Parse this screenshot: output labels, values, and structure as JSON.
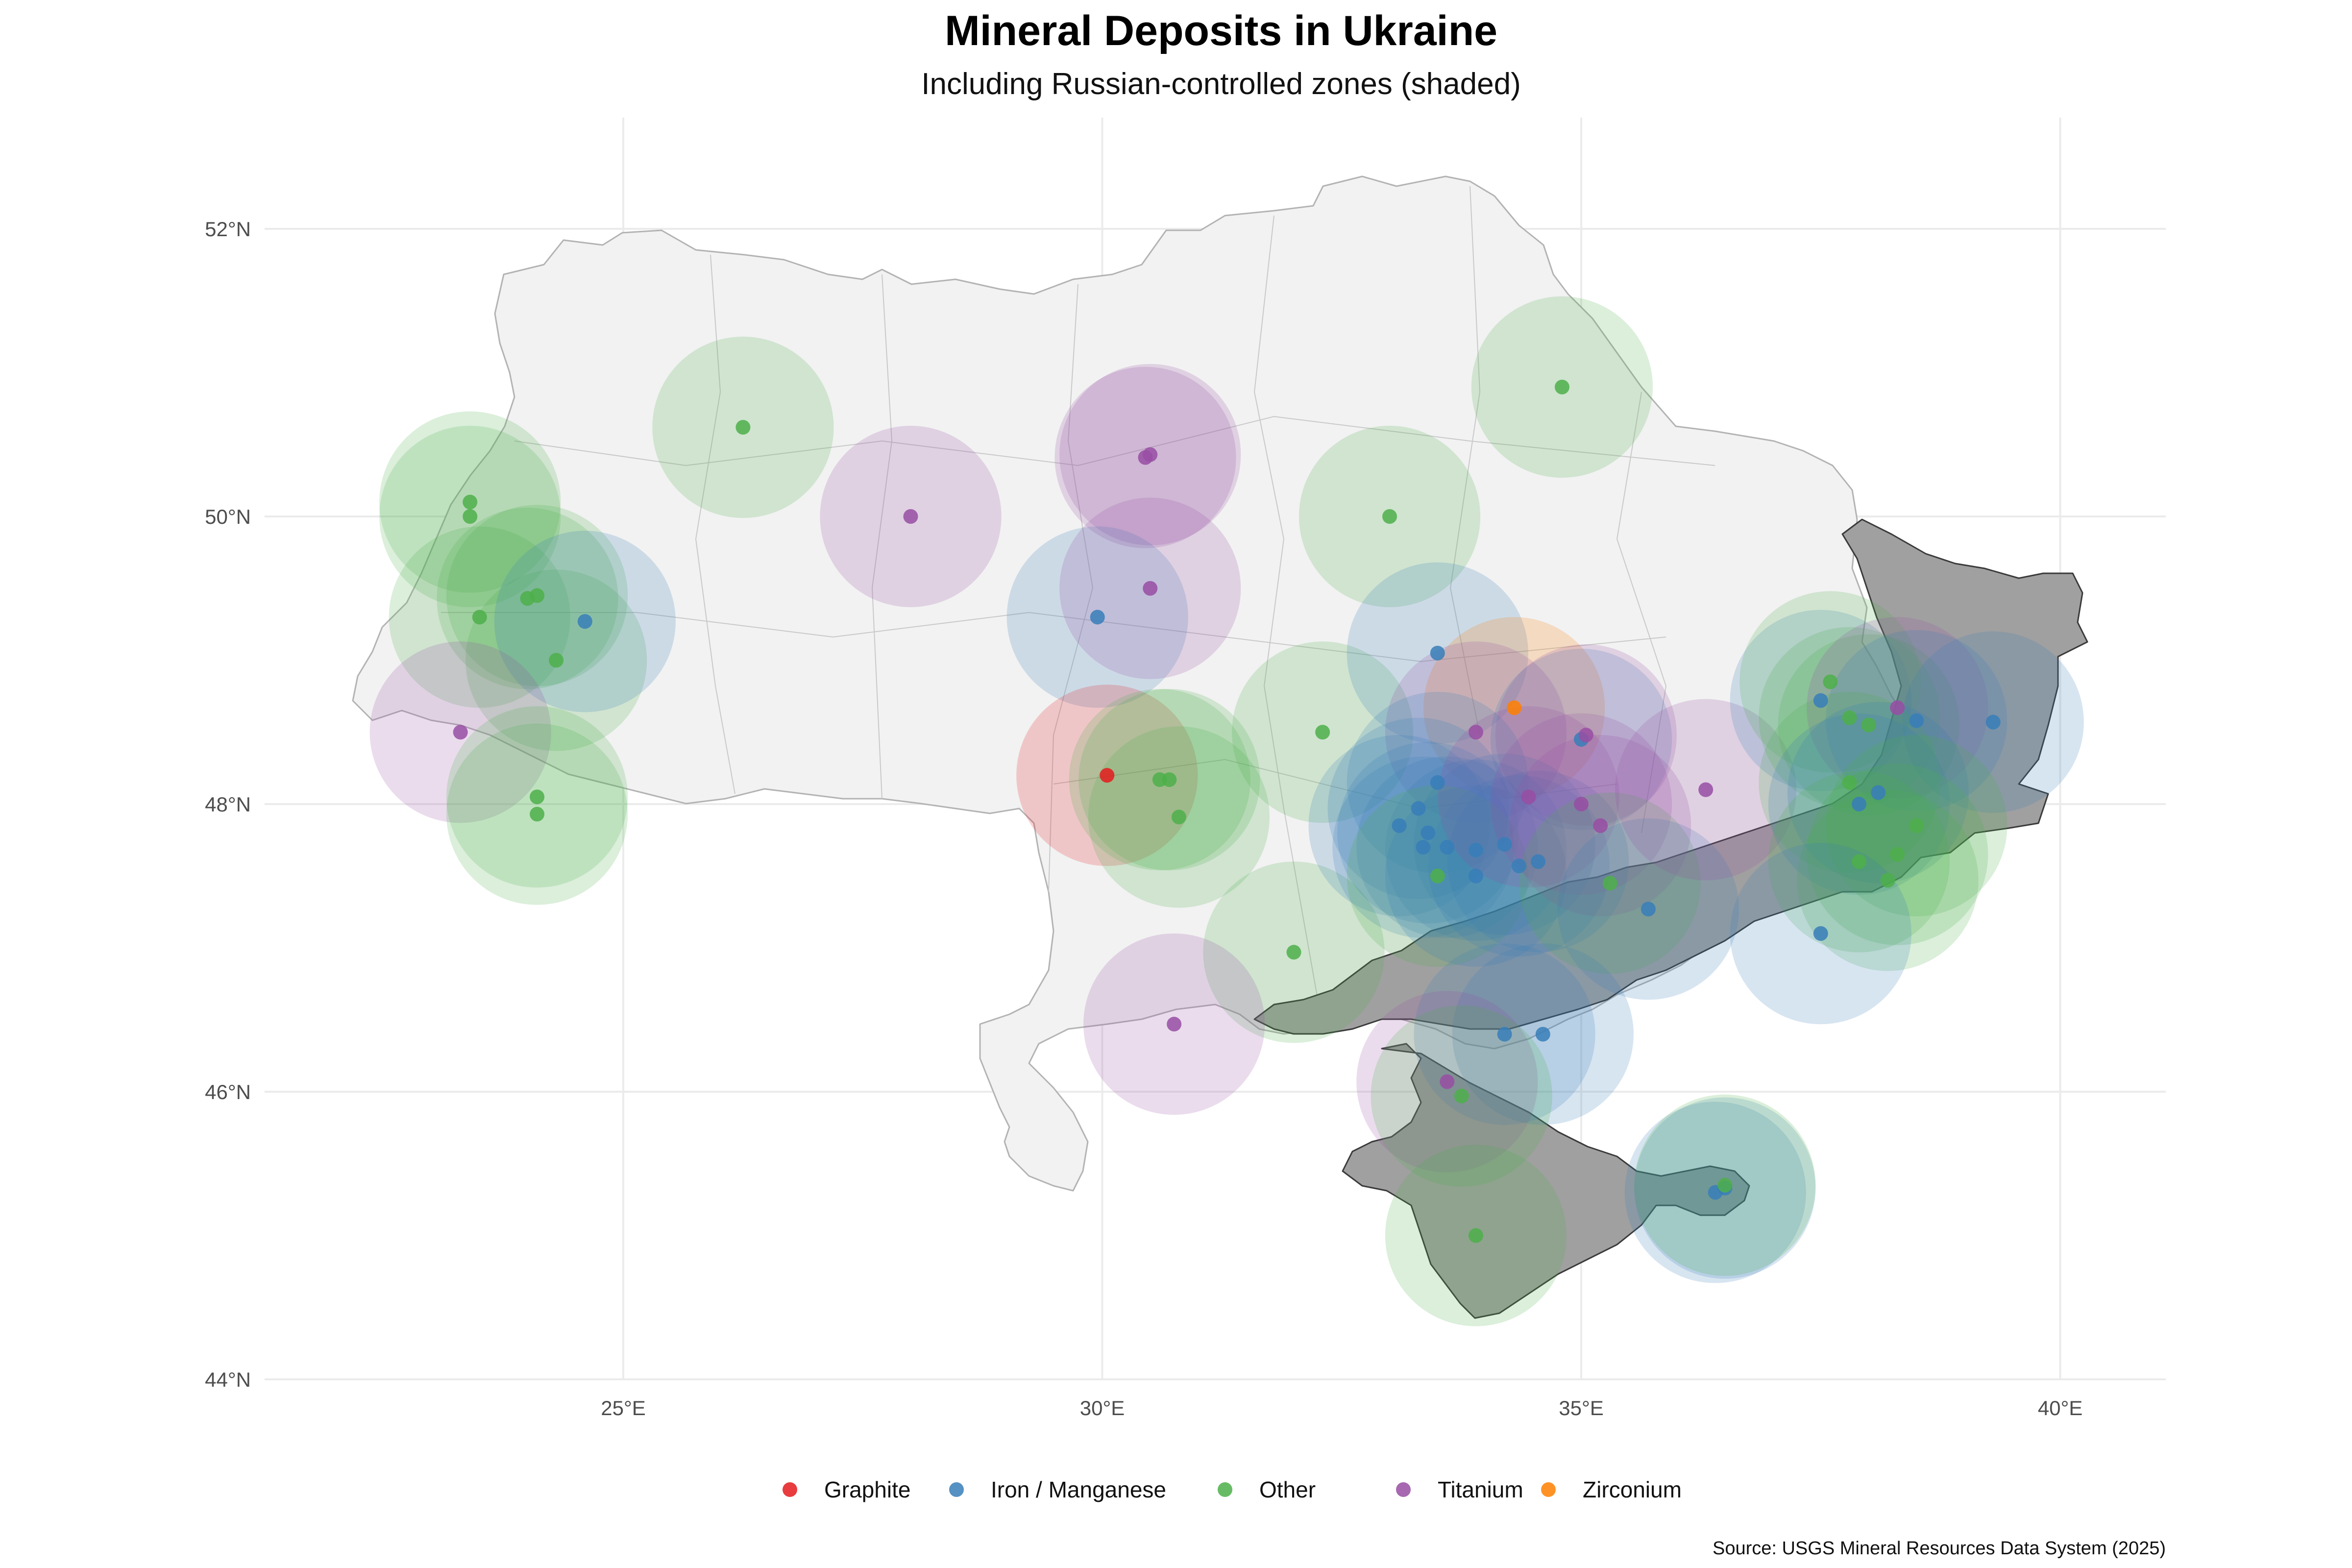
{
  "title": "Mineral Deposits in Ukraine",
  "subtitle": "Including Russian-controlled zones (shaded)",
  "caption": "Source: USGS Mineral Resources Data System (2025)",
  "colors": {
    "Graphite": "#e41a1c",
    "Iron / Manganese": "#377eb8",
    "Other": "#4daf4a",
    "Titanium": "#984ea3",
    "Zirconium": "#ff7f00",
    "land": "#f2f2f2",
    "occupied": "#a0a0a0"
  },
  "map": {
    "lon_range": [
      21.5,
      41.2
    ],
    "lat_range": [
      44.0,
      52.8
    ],
    "lon_ticks": [
      {
        "value": 25,
        "label": "25°E"
      },
      {
        "value": 30,
        "label": "30°E"
      },
      {
        "value": 35,
        "label": "35°E"
      },
      {
        "value": 40,
        "label": "40°E"
      }
    ],
    "lat_ticks": [
      {
        "value": 44,
        "label": "44°N"
      },
      {
        "value": 46,
        "label": "46°N"
      },
      {
        "value": 48,
        "label": "48°N"
      },
      {
        "value": 50,
        "label": "50°N"
      },
      {
        "value": 52,
        "label": "52°N"
      }
    ],
    "grid": true,
    "legend_position": "bottom",
    "halo_radius_km": 70
  },
  "legend": {
    "items": [
      {
        "label": "Graphite",
        "key": "Graphite"
      },
      {
        "label": "Iron / Manganese",
        "key": "Iron / Manganese"
      },
      {
        "label": "Other",
        "key": "Other"
      },
      {
        "label": "Titanium",
        "key": "Titanium"
      },
      {
        "label": "Zirconium",
        "key": "Zirconium"
      }
    ]
  },
  "deposits": [
    {
      "lon": 23.4,
      "lat": 50.1,
      "type": "Other"
    },
    {
      "lon": 23.4,
      "lat": 50.0,
      "type": "Other"
    },
    {
      "lon": 23.5,
      "lat": 49.3,
      "type": "Other"
    },
    {
      "lon": 24.1,
      "lat": 49.45,
      "type": "Other"
    },
    {
      "lon": 24.0,
      "lat": 49.43,
      "type": "Other"
    },
    {
      "lon": 24.3,
      "lat": 49.0,
      "type": "Other"
    },
    {
      "lon": 24.6,
      "lat": 49.27,
      "type": "Iron / Manganese"
    },
    {
      "lon": 23.3,
      "lat": 48.5,
      "type": "Titanium"
    },
    {
      "lon": 24.1,
      "lat": 48.05,
      "type": "Other"
    },
    {
      "lon": 24.1,
      "lat": 47.93,
      "type": "Other"
    },
    {
      "lon": 26.25,
      "lat": 50.62,
      "type": "Other"
    },
    {
      "lon": 28.0,
      "lat": 50.0,
      "type": "Titanium"
    },
    {
      "lon": 30.5,
      "lat": 50.43,
      "type": "Titanium"
    },
    {
      "lon": 30.45,
      "lat": 50.41,
      "type": "Titanium"
    },
    {
      "lon": 29.95,
      "lat": 49.3,
      "type": "Iron / Manganese"
    },
    {
      "lon": 30.5,
      "lat": 49.5,
      "type": "Titanium"
    },
    {
      "lon": 30.05,
      "lat": 48.2,
      "type": "Graphite"
    },
    {
      "lon": 30.6,
      "lat": 48.17,
      "type": "Other"
    },
    {
      "lon": 30.7,
      "lat": 48.17,
      "type": "Other"
    },
    {
      "lon": 30.8,
      "lat": 47.91,
      "type": "Other"
    },
    {
      "lon": 32.3,
      "lat": 48.5,
      "type": "Other"
    },
    {
      "lon": 32.0,
      "lat": 46.97,
      "type": "Other"
    },
    {
      "lon": 30.75,
      "lat": 46.47,
      "type": "Titanium"
    },
    {
      "lon": 33.0,
      "lat": 50.0,
      "type": "Other"
    },
    {
      "lon": 34.8,
      "lat": 50.9,
      "type": "Other"
    },
    {
      "lon": 33.5,
      "lat": 49.05,
      "type": "Iron / Manganese"
    },
    {
      "lon": 34.3,
      "lat": 48.67,
      "type": "Zirconium"
    },
    {
      "lon": 33.9,
      "lat": 48.5,
      "type": "Titanium"
    },
    {
      "lon": 35.0,
      "lat": 48.45,
      "type": "Iron / Manganese"
    },
    {
      "lon": 35.05,
      "lat": 48.48,
      "type": "Titanium"
    },
    {
      "lon": 33.5,
      "lat": 48.15,
      "type": "Iron / Manganese"
    },
    {
      "lon": 33.3,
      "lat": 47.97,
      "type": "Iron / Manganese"
    },
    {
      "lon": 33.1,
      "lat": 47.85,
      "type": "Iron / Manganese"
    },
    {
      "lon": 33.4,
      "lat": 47.8,
      "type": "Iron / Manganese"
    },
    {
      "lon": 33.35,
      "lat": 47.7,
      "type": "Iron / Manganese"
    },
    {
      "lon": 33.6,
      "lat": 47.7,
      "type": "Iron / Manganese"
    },
    {
      "lon": 33.9,
      "lat": 47.68,
      "type": "Iron / Manganese"
    },
    {
      "lon": 34.2,
      "lat": 47.72,
      "type": "Iron / Manganese"
    },
    {
      "lon": 33.5,
      "lat": 47.5,
      "type": "Other"
    },
    {
      "lon": 33.9,
      "lat": 47.5,
      "type": "Iron / Manganese"
    },
    {
      "lon": 34.35,
      "lat": 47.57,
      "type": "Iron / Manganese"
    },
    {
      "lon": 34.55,
      "lat": 47.6,
      "type": "Iron / Manganese"
    },
    {
      "lon": 34.45,
      "lat": 48.05,
      "type": "Titanium"
    },
    {
      "lon": 35.0,
      "lat": 48.0,
      "type": "Titanium"
    },
    {
      "lon": 35.2,
      "lat": 47.85,
      "type": "Titanium"
    },
    {
      "lon": 35.3,
      "lat": 47.45,
      "type": "Other"
    },
    {
      "lon": 35.7,
      "lat": 47.27,
      "type": "Iron / Manganese"
    },
    {
      "lon": 36.3,
      "lat": 48.1,
      "type": "Titanium"
    },
    {
      "lon": 34.2,
      "lat": 46.4,
      "type": "Iron / Manganese"
    },
    {
      "lon": 34.6,
      "lat": 46.4,
      "type": "Iron / Manganese"
    },
    {
      "lon": 33.6,
      "lat": 46.07,
      "type": "Titanium"
    },
    {
      "lon": 33.75,
      "lat": 45.97,
      "type": "Other"
    },
    {
      "lon": 33.9,
      "lat": 45.0,
      "type": "Other"
    },
    {
      "lon": 36.4,
      "lat": 45.3,
      "type": "Iron / Manganese"
    },
    {
      "lon": 36.5,
      "lat": 45.33,
      "type": "Iron / Manganese"
    },
    {
      "lon": 36.5,
      "lat": 45.35,
      "type": "Other"
    },
    {
      "lon": 37.5,
      "lat": 48.72,
      "type": "Iron / Manganese"
    },
    {
      "lon": 37.6,
      "lat": 48.85,
      "type": "Other"
    },
    {
      "lon": 37.8,
      "lat": 48.6,
      "type": "Other"
    },
    {
      "lon": 38.0,
      "lat": 48.55,
      "type": "Other"
    },
    {
      "lon": 38.3,
      "lat": 48.67,
      "type": "Titanium"
    },
    {
      "lon": 38.5,
      "lat": 48.58,
      "type": "Iron / Manganese"
    },
    {
      "lon": 39.3,
      "lat": 48.57,
      "type": "Iron / Manganese"
    },
    {
      "lon": 37.8,
      "lat": 48.15,
      "type": "Other"
    },
    {
      "lon": 37.9,
      "lat": 48.0,
      "type": "Iron / Manganese"
    },
    {
      "lon": 38.1,
      "lat": 48.08,
      "type": "Iron / Manganese"
    },
    {
      "lon": 38.5,
      "lat": 47.85,
      "type": "Other"
    },
    {
      "lon": 38.3,
      "lat": 47.65,
      "type": "Other"
    },
    {
      "lon": 37.9,
      "lat": 47.6,
      "type": "Other"
    },
    {
      "lon": 38.2,
      "lat": 47.47,
      "type": "Other"
    },
    {
      "lon": 37.5,
      "lat": 47.1,
      "type": "Iron / Manganese"
    }
  ]
}
